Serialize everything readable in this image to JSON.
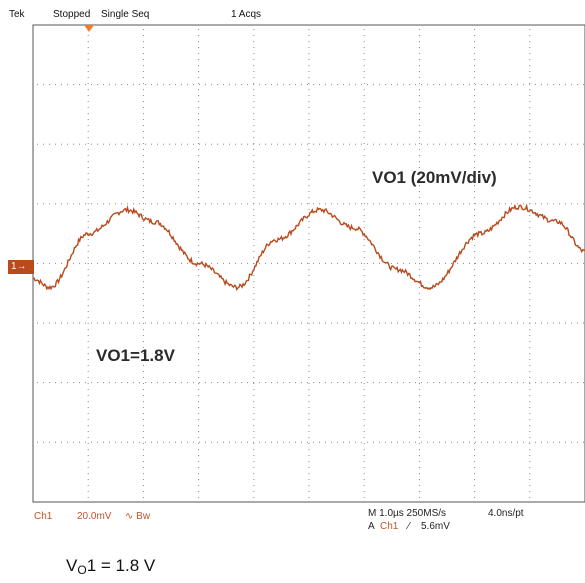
{
  "status_bar": {
    "brand": "Tek",
    "state": "Stopped",
    "mode": "Single Seq",
    "acqs": "1 Acqs"
  },
  "channel_marker": "1→",
  "annotations": {
    "scale_label": "VO1 (20mV/div)",
    "voltage_label": "VO1=1.8V"
  },
  "readout": {
    "channel": "Ch1",
    "volts_per_div": "20.0mV",
    "coupling": "∿ Bw",
    "timebase": "M 1.0µs 250MS/s",
    "time_per_point": "4.0ns/pt",
    "trigger_prefix": "A",
    "trigger_channel": "Ch1",
    "trigger_slope": "⁄",
    "trigger_level": "5.6mV"
  },
  "caption": {
    "prefix": "V",
    "subscript": "O",
    "suffix": "1 = 1.8 V"
  },
  "colors": {
    "trace": "#b84a1c",
    "grid_dots": "#8a8a8a",
    "marker_bg": "#b84a1c",
    "trigger_marker": "#f07a28"
  },
  "chart_data": {
    "type": "line",
    "title": "VO1 (20mV/div)",
    "xlabel": "",
    "ylabel": "",
    "x_unit": "µs",
    "y_unit": "mV",
    "xlim": [
      0,
      10
    ],
    "ylim": [
      -80,
      80
    ],
    "grid": true,
    "series": [
      {
        "name": "Ch1",
        "x": [
          0.0,
          0.3,
          1.0,
          1.7,
          2.2,
          3.0,
          3.7,
          4.4,
          5.2,
          5.8,
          6.6,
          7.2,
          8.1,
          8.8,
          9.5,
          10.0
        ],
        "y": [
          -5,
          -8,
          10,
          18,
          14,
          0,
          -8,
          8,
          18,
          12,
          -2,
          -8,
          10,
          19,
          14,
          4
        ]
      }
    ]
  }
}
